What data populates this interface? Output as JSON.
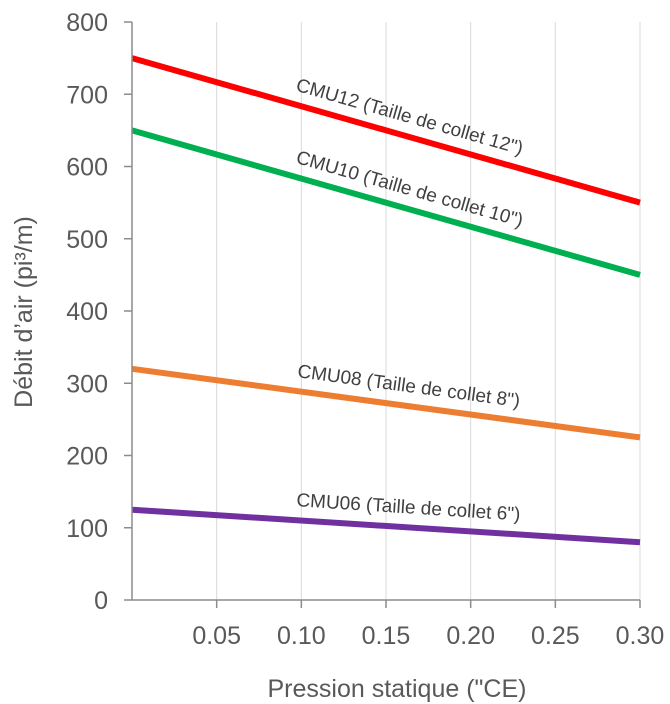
{
  "chart_data": {
    "type": "line",
    "xlabel": "Pression statique (\"CE)",
    "ylabel": "Débit d’air (pi³/m)",
    "xlim": [
      0,
      0.3
    ],
    "ylim": [
      0,
      800
    ],
    "x_ticks": [
      0.05,
      0.1,
      0.15,
      0.2,
      0.25,
      0.3
    ],
    "x_tick_labels": [
      "0.05",
      "0.10",
      "0.15",
      "0.20",
      "0.25",
      "0.30"
    ],
    "y_ticks": [
      0,
      100,
      200,
      300,
      400,
      500,
      600,
      700,
      800
    ],
    "y_tick_labels": [
      "0",
      "100",
      "200",
      "300",
      "400",
      "500",
      "600",
      "700",
      "800"
    ],
    "grid": {
      "vertical": true,
      "horizontal": false
    },
    "series": [
      {
        "name": "CMU12 (Taille de collet 12\")",
        "color": "#ff0000",
        "x": [
          0,
          0.3
        ],
        "values": [
          750,
          550
        ]
      },
      {
        "name": "CMU10 (Taille de collet 10\")",
        "color": "#00b050",
        "x": [
          0,
          0.3
        ],
        "values": [
          650,
          450
        ]
      },
      {
        "name": "CMU08 (Taille de collet 8\")",
        "color": "#ed7d31",
        "x": [
          0,
          0.3
        ],
        "values": [
          320,
          225
        ]
      },
      {
        "name": "CMU06 (Taille de collet 6\")",
        "color": "#7030a0",
        "x": [
          0,
          0.3
        ],
        "values": [
          125,
          80
        ]
      }
    ]
  }
}
